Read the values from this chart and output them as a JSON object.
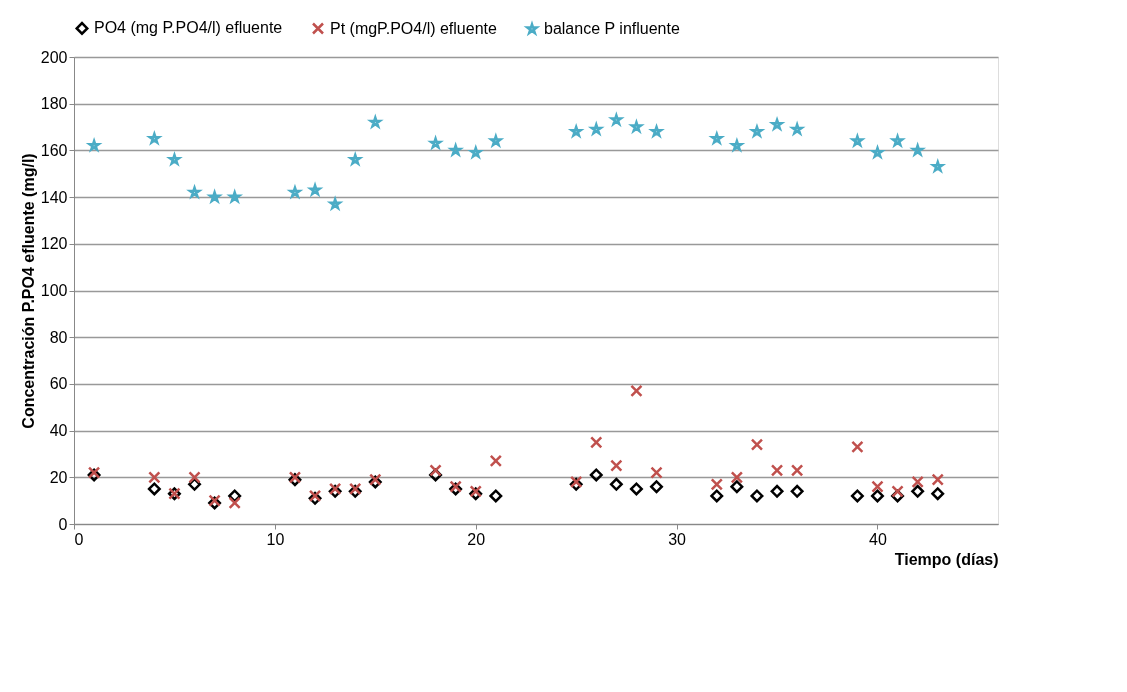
{
  "chart_data": {
    "type": "scatter",
    "xlabel": "Tiempo (días)",
    "ylabel": "Concentración P.PO4 efluente (mg/l)",
    "x": [
      1,
      4,
      5,
      6,
      7,
      8,
      11,
      12,
      13,
      14,
      15,
      18,
      19,
      20,
      21,
      25,
      26,
      27,
      28,
      29,
      32,
      33,
      34,
      35,
      36,
      39,
      40,
      41,
      42,
      43
    ],
    "series": [
      {
        "name": "PO4 (mg P.PO4/l) efluente",
        "color": "#000000",
        "marker": "diamond",
        "values": [
          21,
          15,
          13,
          17,
          9,
          12,
          19,
          11,
          14,
          14,
          18,
          21,
          15,
          13,
          12,
          17,
          21,
          17,
          15,
          16,
          12,
          16,
          12,
          14,
          14,
          12,
          12,
          12,
          14,
          13
        ]
      },
      {
        "name": "Pt (mgP.PO4/l) efluente",
        "color": "#c0504d",
        "marker": "cross",
        "values": [
          22,
          20,
          13,
          20,
          10,
          9,
          20,
          12,
          15,
          15,
          19,
          23,
          16,
          14,
          27,
          18,
          35,
          25,
          57,
          22,
          17,
          20,
          34,
          23,
          23,
          33,
          16,
          14,
          18,
          19
        ]
      },
      {
        "name": "balance P influente",
        "color": "#4bacc6",
        "marker": "star",
        "values": [
          162,
          165,
          156,
          142,
          140,
          140,
          142,
          143,
          137,
          156,
          172,
          163,
          160,
          159,
          164,
          168,
          169,
          173,
          170,
          168,
          165,
          162,
          168,
          171,
          169,
          164,
          159,
          164,
          160,
          153
        ]
      }
    ],
    "xlim": [
      0,
      46
    ],
    "xticks": [
      0,
      10,
      20,
      30,
      40
    ],
    "ylim": [
      0,
      200
    ],
    "yticks": [
      0,
      20,
      40,
      60,
      80,
      100,
      120,
      140,
      160,
      180,
      200
    ],
    "grid": "y",
    "legend": "top"
  }
}
